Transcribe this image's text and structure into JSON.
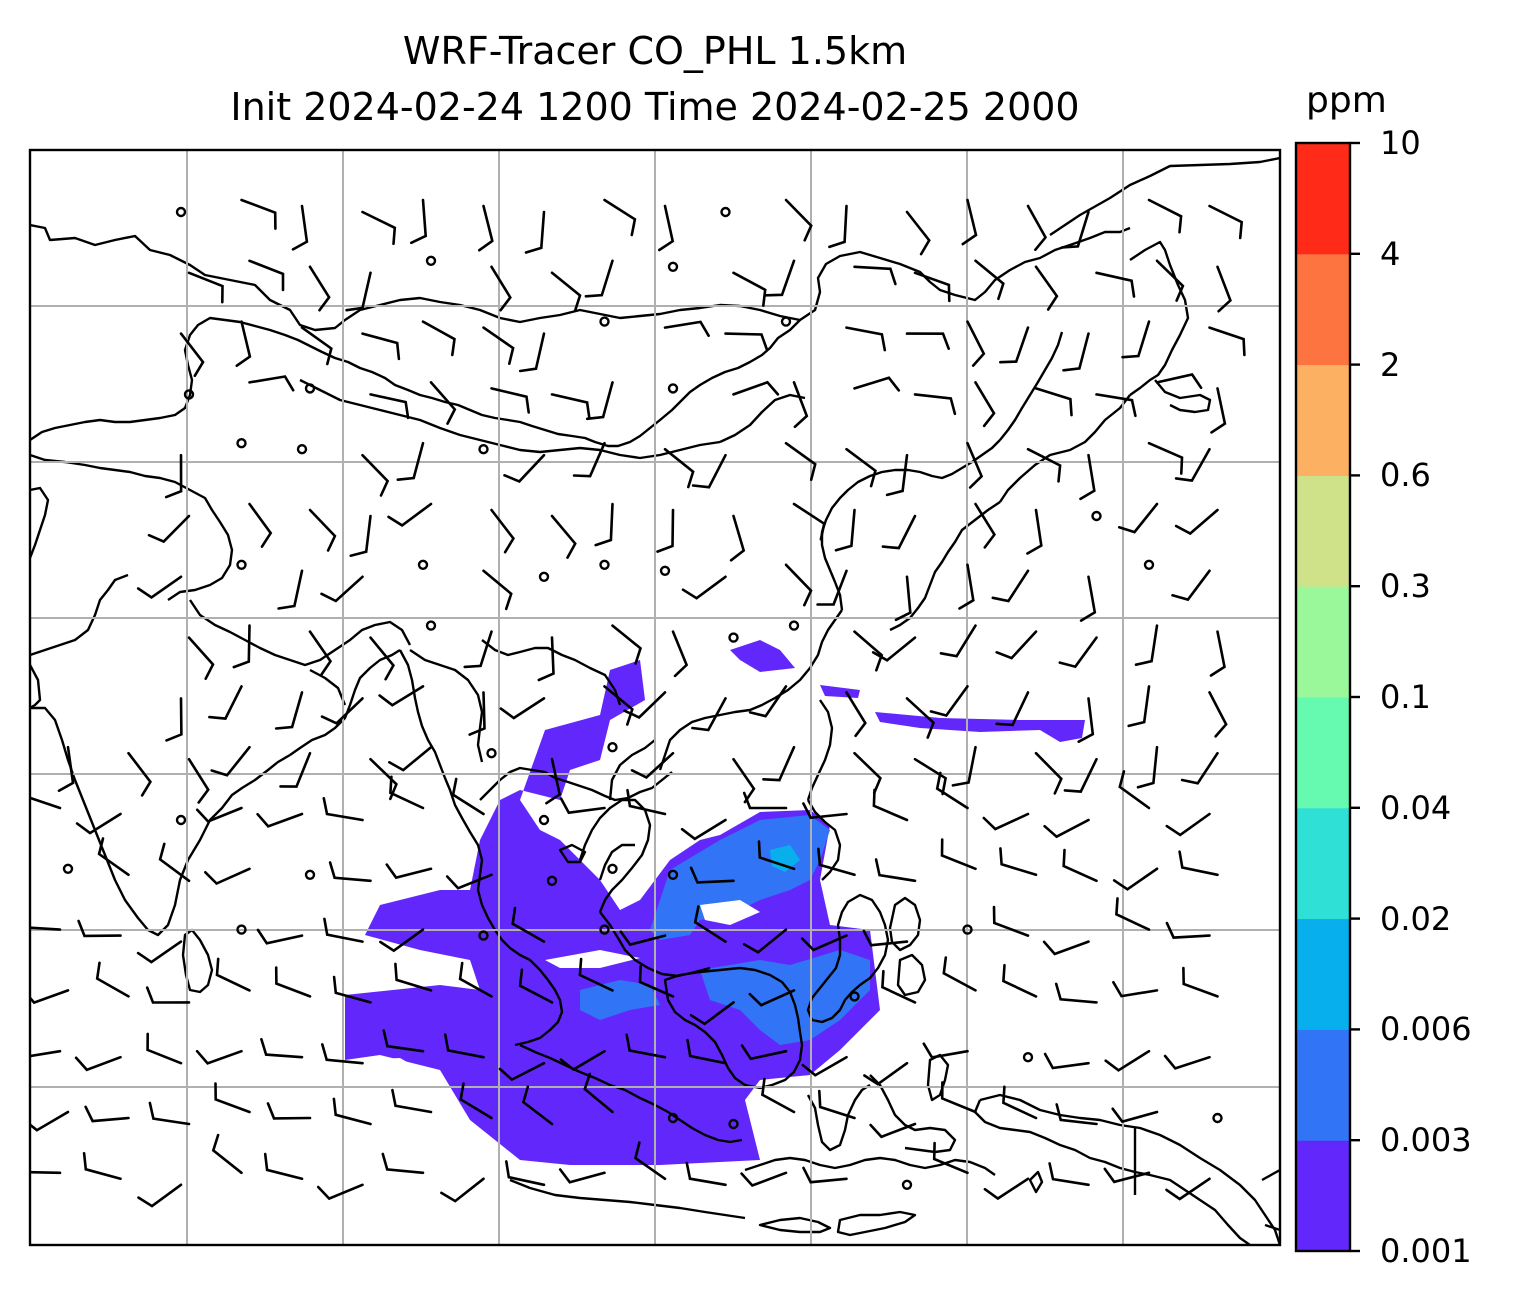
{
  "title": {
    "line1": "WRF-Tracer CO_PHL 1.5km",
    "line2": "Init 2024-02-24 1200 Time 2024-02-25 2000"
  },
  "colorbar": {
    "unit": "ppm",
    "levels": [
      "0.001",
      "0.003",
      "0.006",
      "0.02",
      "0.04",
      "0.1",
      "0.3",
      "0.6",
      "2",
      "4",
      "10"
    ],
    "colors": [
      "#6228fb",
      "#3274f6",
      "#07b0ec",
      "#2ee0d6",
      "#66f9b0",
      "#9af89a",
      "#cfe28a",
      "#fbb062",
      "#fe7440",
      "#ff2a17"
    ]
  },
  "map": {
    "fill_color": "#6228fb",
    "secondary_fill_color": "#3274f6",
    "highlight_fill_color": "#07b0ec",
    "coastline_color": "#000000",
    "gridline_color": "#b0b0b0"
  }
}
